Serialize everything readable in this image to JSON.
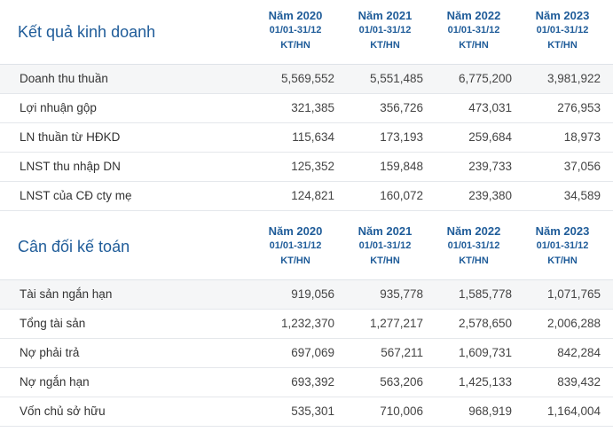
{
  "business_results": {
    "title": "Kết quả kinh doanh",
    "columns": [
      {
        "year": "Năm 2020",
        "period": "01/01-31/12",
        "unit": "KT/HN"
      },
      {
        "year": "Năm 2021",
        "period": "01/01-31/12",
        "unit": "KT/HN"
      },
      {
        "year": "Năm 2022",
        "period": "01/01-31/12",
        "unit": "KT/HN"
      },
      {
        "year": "Năm 2023",
        "period": "01/01-31/12",
        "unit": "KT/HN"
      }
    ],
    "rows": [
      {
        "label": "Doanh thu thuần",
        "values": [
          "5,569,552",
          "5,551,485",
          "6,775,200",
          "3,981,922"
        ]
      },
      {
        "label": "Lợi nhuận gộp",
        "values": [
          "321,385",
          "356,726",
          "473,031",
          "276,953"
        ]
      },
      {
        "label": "LN thuần từ HĐKD",
        "values": [
          "115,634",
          "173,193",
          "259,684",
          "18,973"
        ]
      },
      {
        "label": "LNST thu nhập DN",
        "values": [
          "125,352",
          "159,848",
          "239,733",
          "37,056"
        ]
      },
      {
        "label": "LNST của CĐ cty mẹ",
        "values": [
          "124,821",
          "160,072",
          "239,380",
          "34,589"
        ]
      }
    ]
  },
  "balance_sheet": {
    "title": "Cân đối kế toán",
    "columns": [
      {
        "year": "Năm 2020",
        "period": "01/01-31/12",
        "unit": "KT/HN"
      },
      {
        "year": "Năm 2021",
        "period": "01/01-31/12",
        "unit": "KT/HN"
      },
      {
        "year": "Năm 2022",
        "period": "01/01-31/12",
        "unit": "KT/HN"
      },
      {
        "year": "Năm 2023",
        "period": "01/01-31/12",
        "unit": "KT/HN"
      }
    ],
    "rows": [
      {
        "label": "Tài sản ngắn hạn",
        "values": [
          "919,056",
          "935,778",
          "1,585,778",
          "1,071,765"
        ]
      },
      {
        "label": "Tổng tài sản",
        "values": [
          "1,232,370",
          "1,277,217",
          "2,578,650",
          "2,006,288"
        ]
      },
      {
        "label": "Nợ phải trả",
        "values": [
          "697,069",
          "567,211",
          "1,609,731",
          "842,284"
        ]
      },
      {
        "label": "Nợ ngắn hạn",
        "values": [
          "693,392",
          "563,206",
          "1,425,133",
          "839,432"
        ]
      },
      {
        "label": "Vốn chủ sở hữu",
        "values": [
          "535,301",
          "710,006",
          "968,919",
          "1,164,004"
        ]
      }
    ]
  },
  "colors": {
    "accent": "#1f5c99",
    "row_band": "#f5f6f7",
    "divider": "#e4e7eb"
  }
}
